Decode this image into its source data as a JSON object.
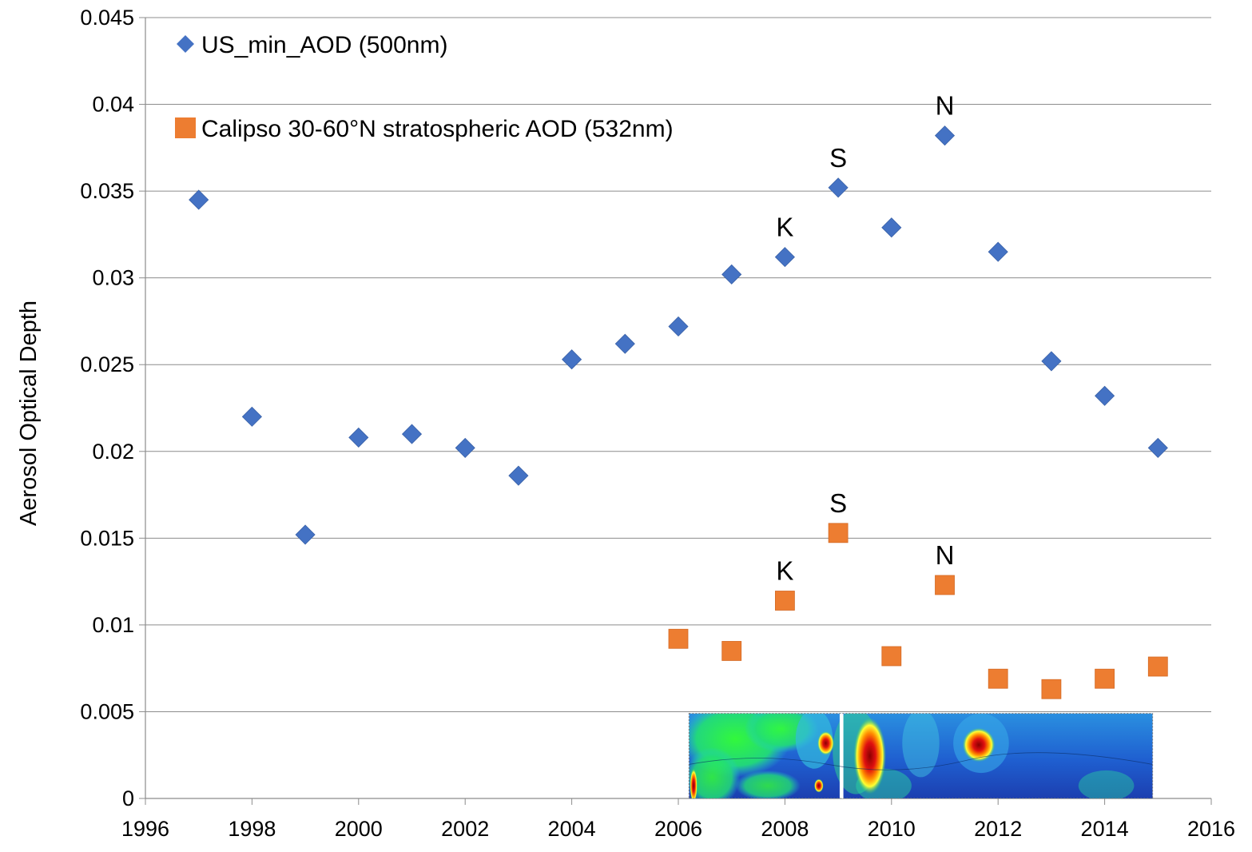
{
  "chart_data": {
    "type": "scatter",
    "title": "",
    "xlabel": "",
    "ylabel": "Aerosol Optical Depth",
    "xlim": [
      1996,
      2016
    ],
    "ylim": [
      0,
      0.045
    ],
    "xticks": [
      1996,
      1998,
      2000,
      2002,
      2004,
      2006,
      2008,
      2010,
      2012,
      2014,
      2016
    ],
    "yticks": [
      0,
      0.005,
      0.01,
      0.015,
      0.02,
      0.025,
      0.03,
      0.035,
      0.04,
      0.045
    ],
    "ytick_labels": [
      "0",
      "0.005",
      "0.01",
      "0.015",
      "0.02",
      "0.025",
      "0.03",
      "0.035",
      "0.04",
      "0.045"
    ],
    "grid": "horizontal",
    "legend_position": "top-left",
    "series": [
      {
        "name": "US_min_AOD (500nm)",
        "marker": "diamond",
        "color": "#4472C4",
        "x": [
          1997,
          1998,
          1999,
          2000,
          2001,
          2002,
          2003,
          2004,
          2005,
          2006,
          2007,
          2008,
          2009,
          2010,
          2011,
          2012,
          2013,
          2014,
          2015
        ],
        "y": [
          0.0345,
          0.022,
          0.0152,
          0.0208,
          0.021,
          0.0202,
          0.0186,
          0.0253,
          0.0262,
          0.0272,
          0.0302,
          0.0312,
          0.0352,
          0.0329,
          0.0382,
          0.0315,
          0.0252,
          0.0232,
          0.0202
        ]
      },
      {
        "name": "Calipso 30-60°N stratospheric AOD (532nm)",
        "marker": "square",
        "color": "#ED7D31",
        "x": [
          2006,
          2007,
          2008,
          2009,
          2010,
          2011,
          2012,
          2013,
          2014,
          2015
        ],
        "y": [
          0.0092,
          0.0085,
          0.0114,
          0.0153,
          0.0082,
          0.0123,
          0.0069,
          0.0063,
          0.0069,
          0.0076
        ]
      }
    ],
    "annotations": [
      {
        "text": "K",
        "x": 2008,
        "y": 0.0312,
        "series": 0
      },
      {
        "text": "S",
        "x": 2009,
        "y": 0.0352,
        "series": 0
      },
      {
        "text": "N",
        "x": 2011,
        "y": 0.0382,
        "series": 0
      },
      {
        "text": "K",
        "x": 2008,
        "y": 0.0114,
        "series": 1
      },
      {
        "text": "S",
        "x": 2009,
        "y": 0.0153,
        "series": 1
      },
      {
        "text": "N",
        "x": 2011,
        "y": 0.0123,
        "series": 1
      }
    ],
    "inset": {
      "description_name": "calipso-curtain-inset",
      "x_range": [
        2006.2,
        2014.9
      ],
      "y_range": [
        0,
        0.0049
      ]
    }
  }
}
